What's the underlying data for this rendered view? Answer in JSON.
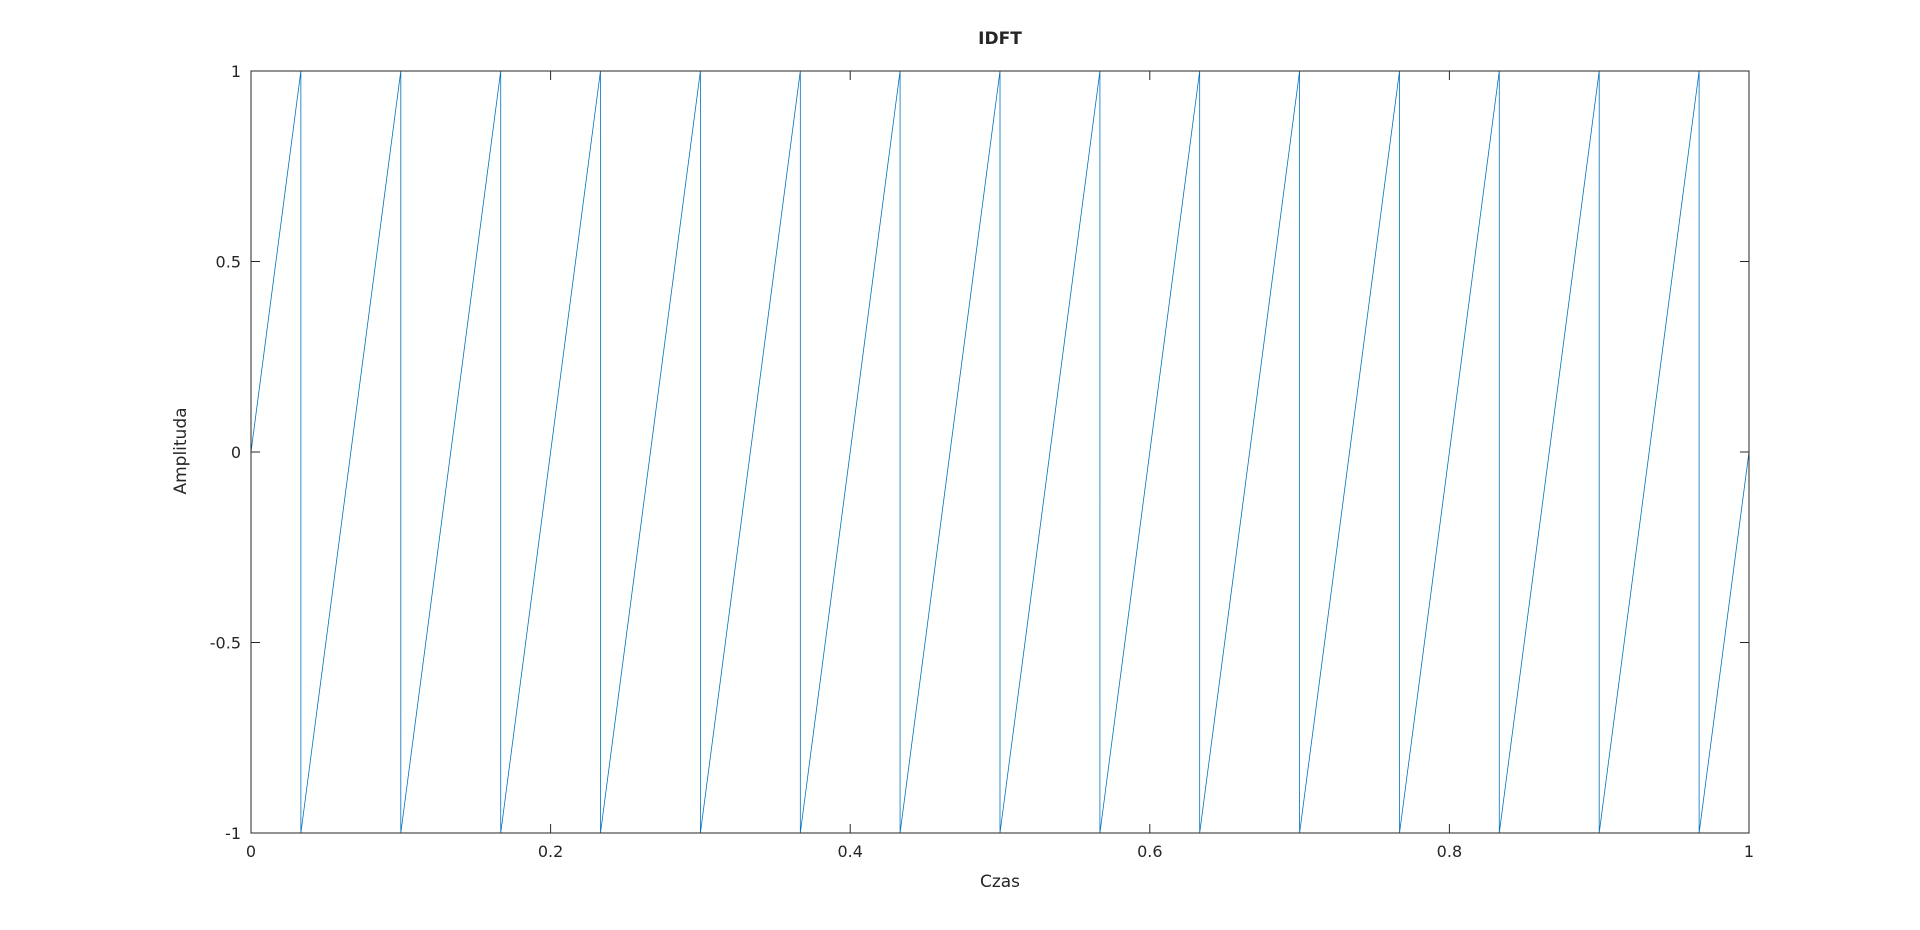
{
  "chart_data": {
    "type": "line",
    "title": "IDFT",
    "xlabel": "Czas",
    "ylabel": "Amplituda",
    "xlim": [
      0,
      1
    ],
    "ylim": [
      -1,
      1
    ],
    "grid": false,
    "x_ticks": [
      {
        "value": 0,
        "label": "0"
      },
      {
        "value": 0.2,
        "label": "0.2"
      },
      {
        "value": 0.4,
        "label": "0.4"
      },
      {
        "value": 0.6,
        "label": "0.6"
      },
      {
        "value": 0.8,
        "label": "0.8"
      },
      {
        "value": 1,
        "label": "1"
      }
    ],
    "y_ticks": [
      {
        "value": -1,
        "label": "-1"
      },
      {
        "value": -0.5,
        "label": "-0.5"
      },
      {
        "value": 0,
        "label": "0"
      },
      {
        "value": 0.5,
        "label": "0.5"
      },
      {
        "value": 1,
        "label": "1"
      }
    ],
    "series": [
      {
        "color": "#0072bd",
        "x": [
          0,
          0.0333,
          0.0333,
          0.1,
          0.1,
          0.1667,
          0.1667,
          0.2333,
          0.2333,
          0.3,
          0.3,
          0.3667,
          0.3667,
          0.4333,
          0.4333,
          0.5,
          0.5,
          0.5667,
          0.5667,
          0.6333,
          0.6333,
          0.7,
          0.7,
          0.7667,
          0.7667,
          0.8333,
          0.8333,
          0.9,
          0.9,
          0.9667,
          0.9667,
          1
        ],
        "y": [
          0,
          1,
          -1,
          1,
          -1,
          1,
          -1,
          1,
          -1,
          1,
          -1,
          1,
          -1,
          1,
          -1,
          1,
          -1,
          1,
          -1,
          1,
          -1,
          1,
          -1,
          1,
          -1,
          1,
          -1,
          1,
          -1,
          1,
          -1,
          0
        ]
      }
    ]
  }
}
